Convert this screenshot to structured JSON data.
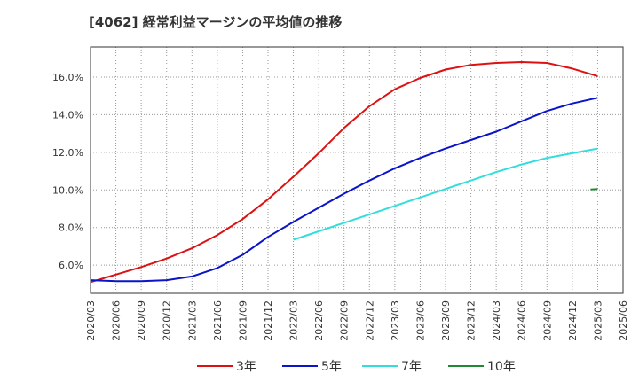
{
  "chart_data": {
    "type": "line",
    "title": "[4062]  経常利益マージンの平均値の推移",
    "xlabel": "",
    "ylabel": "",
    "x": [
      "2020/03",
      "2020/06",
      "2020/09",
      "2020/12",
      "2021/03",
      "2021/06",
      "2021/09",
      "2021/12",
      "2022/03",
      "2022/06",
      "2022/09",
      "2022/12",
      "2023/03",
      "2023/06",
      "2023/09",
      "2023/12",
      "2024/03",
      "2024/06",
      "2024/09",
      "2024/12",
      "2025/03",
      "2025/06"
    ],
    "ylim": [
      4.5,
      17.6
    ],
    "yticks": [
      6.0,
      8.0,
      10.0,
      12.0,
      14.0,
      16.0
    ],
    "ytick_labels": [
      "6.0%",
      "8.0%",
      "10.0%",
      "12.0%",
      "14.0%",
      "16.0%"
    ],
    "grid": "on",
    "legend_position": "bottom",
    "series": [
      {
        "name": "3年",
        "color": "#dd1111",
        "values": [
          5.1,
          5.5,
          5.9,
          6.35,
          6.9,
          7.6,
          8.45,
          9.5,
          10.7,
          11.95,
          13.3,
          14.45,
          15.35,
          15.95,
          16.4,
          16.65,
          16.75,
          16.8,
          16.75,
          16.45,
          16.05,
          null
        ]
      },
      {
        "name": "5年",
        "color": "#0a14c8",
        "values": [
          5.2,
          5.15,
          5.15,
          5.2,
          5.4,
          5.85,
          6.55,
          7.5,
          8.3,
          9.05,
          9.8,
          10.5,
          11.15,
          11.7,
          12.2,
          12.65,
          13.1,
          13.65,
          14.2,
          14.6,
          14.9,
          null
        ]
      },
      {
        "name": "7年",
        "color": "#33dddd",
        "values": [
          null,
          null,
          null,
          null,
          null,
          null,
          null,
          null,
          7.35,
          7.8,
          8.25,
          8.7,
          9.15,
          9.6,
          10.05,
          10.5,
          10.95,
          11.35,
          11.7,
          11.95,
          12.2,
          null
        ]
      },
      {
        "name": "10年",
        "color": "#228833",
        "values": [
          null,
          null,
          null,
          null,
          null,
          null,
          null,
          null,
          null,
          null,
          null,
          null,
          null,
          null,
          null,
          null,
          null,
          null,
          null,
          null,
          10.05,
          null
        ]
      }
    ]
  }
}
